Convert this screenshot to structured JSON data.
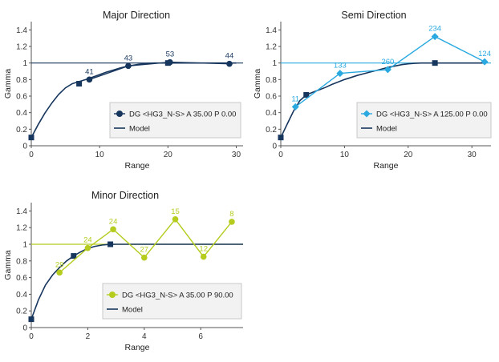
{
  "chart_data": [
    {
      "type": "line",
      "title": "Major Direction",
      "xlabel": "Range",
      "ylabel": "Gamma",
      "xlim": [
        0,
        31
      ],
      "ylim": [
        0,
        1.5
      ],
      "xticks": [
        0,
        10,
        20,
        30
      ],
      "yticks": [
        0,
        0.2,
        0.4,
        0.6,
        0.8,
        1,
        1.2,
        1.4
      ],
      "ytick_labels": [
        "0",
        "0.2",
        "0.4",
        "0.6",
        "0.8",
        "1",
        "1.2",
        "1.4"
      ],
      "sill": 1,
      "grid": false,
      "legend_position": "center-right",
      "series": [
        {
          "name": "DG <HG3_N-S> A 35.00 P 0.00",
          "kind": "experimental",
          "color": "#17365d",
          "marker": "circle",
          "x": [
            8.5,
            14.2,
            20.3,
            29.0
          ],
          "y": [
            0.8,
            0.965,
            1.01,
            0.99
          ],
          "labels": [
            "41",
            "43",
            "53",
            "44"
          ]
        },
        {
          "name": "Model",
          "kind": "model",
          "color": "#17365d",
          "x": [
            0,
            1,
            2,
            3,
            4,
            5,
            6,
            7,
            8,
            9,
            10,
            11,
            12,
            13,
            14,
            15,
            16,
            17,
            18,
            19,
            20,
            21,
            22,
            23,
            24,
            25,
            26,
            27,
            28,
            29,
            30
          ],
          "y": [
            0.1,
            0.255,
            0.395,
            0.515,
            0.62,
            0.7,
            0.75,
            0.775,
            0.8,
            0.83,
            0.86,
            0.89,
            0.915,
            0.94,
            0.96,
            0.975,
            0.988,
            0.996,
            1.0,
            1.0,
            1.0,
            1.0,
            1.0,
            1.0,
            1.0,
            1.0,
            1.0,
            1.0,
            1.0,
            1.0,
            1.0
          ],
          "nodes_x": [
            0,
            7.0,
            20.0
          ],
          "nodes_y": [
            0.1,
            0.75,
            1.0
          ]
        }
      ]
    },
    {
      "type": "line",
      "title": "Semi Direction",
      "xlabel": "Range",
      "ylabel": "Gamma",
      "xlim": [
        0,
        33
      ],
      "ylim": [
        0,
        1.5
      ],
      "xticks": [
        0,
        10,
        20,
        30
      ],
      "yticks": [
        0,
        0.2,
        0.4,
        0.6,
        0.8,
        1,
        1.2,
        1.4
      ],
      "ytick_labels": [
        "0",
        "0.2",
        "0.4",
        "0.6",
        "0.8",
        "1",
        "1.2",
        "1.4"
      ],
      "sill": 1,
      "grid": false,
      "legend_position": "center-right",
      "series": [
        {
          "name": "DG <HG3_N-S> A 125.00 P 0.00",
          "kind": "experimental",
          "color": "#29a9e0",
          "marker": "diamond",
          "x": [
            2.3,
            9.3,
            16.8,
            24.2,
            32.0
          ],
          "y": [
            0.47,
            0.875,
            0.92,
            1.32,
            1.015
          ],
          "labels": [
            "11",
            "133",
            "260",
            "234",
            "124"
          ]
        },
        {
          "name": "Model",
          "kind": "model",
          "color": "#17365d",
          "x": [
            0,
            1,
            2,
            3,
            4,
            5,
            6,
            7,
            8,
            9,
            10,
            11,
            12,
            13,
            14,
            15,
            16,
            17,
            18,
            19,
            20,
            21,
            22,
            23,
            24,
            25,
            26,
            27,
            28,
            29,
            30,
            31,
            32
          ],
          "y": [
            0.1,
            0.26,
            0.42,
            0.545,
            0.615,
            0.645,
            0.675,
            0.705,
            0.74,
            0.77,
            0.8,
            0.825,
            0.85,
            0.87,
            0.89,
            0.91,
            0.93,
            0.95,
            0.965,
            0.98,
            0.99,
            0.996,
            1.0,
            1.0,
            1.0,
            1.0,
            1.0,
            1.0,
            1.0,
            1.0,
            1.0,
            1.0,
            1.0
          ],
          "nodes_x": [
            0,
            4.0,
            24.2
          ],
          "nodes_y": [
            0.1,
            0.615,
            1.0
          ]
        }
      ]
    },
    {
      "type": "line",
      "title": "Minor Direction",
      "xlabel": "Range",
      "ylabel": "Gamma",
      "xlim": [
        0,
        7.5
      ],
      "ylim": [
        0,
        1.5
      ],
      "xticks": [
        0,
        2,
        4,
        6
      ],
      "yticks": [
        0,
        0.2,
        0.4,
        0.6,
        0.8,
        1,
        1.2,
        1.4
      ],
      "ytick_labels": [
        "0",
        "0.2",
        "0.4",
        "0.6",
        "0.8",
        "1",
        "1.2",
        "1.4"
      ],
      "sill": 1,
      "grid": false,
      "legend_position": "center-right",
      "series": [
        {
          "name": "DG <HG3_N-S> A 35.00 P 90.00",
          "kind": "experimental",
          "color": "#b5cc1f",
          "marker": "circle",
          "x": [
            1.0,
            2.0,
            2.9,
            4.0,
            5.1,
            6.1,
            7.1
          ],
          "y": [
            0.66,
            0.955,
            1.18,
            0.84,
            1.3,
            0.85,
            1.27
          ],
          "labels": [
            "29",
            "24",
            "24",
            "27",
            "15",
            "12",
            "8"
          ]
        },
        {
          "name": "Model",
          "kind": "model",
          "color": "#17365d",
          "x": [
            0,
            0.25,
            0.5,
            0.75,
            1.0,
            1.25,
            1.5,
            1.75,
            2.0,
            2.25,
            2.5,
            2.75,
            3.0,
            3.5,
            4,
            5,
            6,
            7,
            7.5
          ],
          "y": [
            0.1,
            0.33,
            0.51,
            0.63,
            0.72,
            0.8,
            0.86,
            0.91,
            0.95,
            0.975,
            0.99,
            0.998,
            1.0,
            1.0,
            1.0,
            1.0,
            1.0,
            1.0,
            1.0
          ],
          "nodes_x": [
            0,
            1.5,
            2.8
          ],
          "nodes_y": [
            0.1,
            0.86,
            1.0
          ]
        }
      ]
    }
  ]
}
